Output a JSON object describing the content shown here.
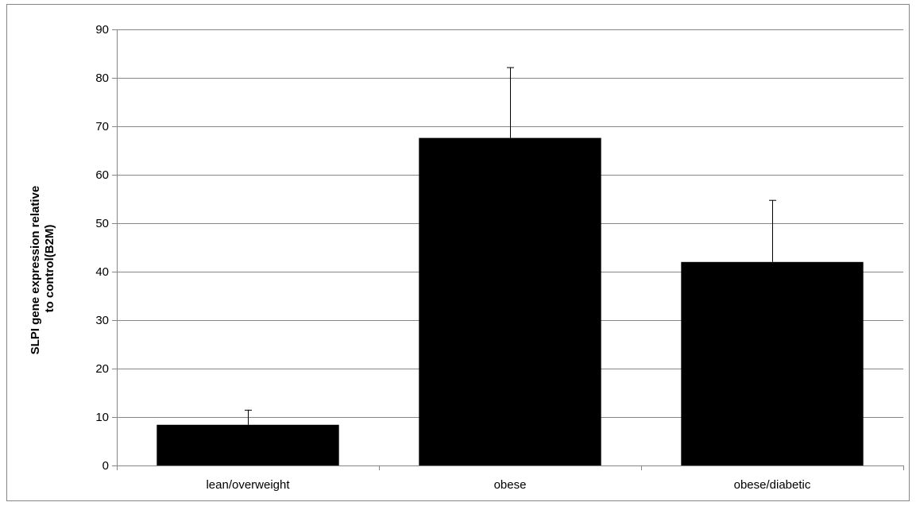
{
  "chart_data": {
    "type": "bar",
    "title": "",
    "xlabel": "",
    "ylabel_lines": [
      "SLPI gene expression relative",
      "to control(B2M)"
    ],
    "categories": [
      "lean/overweight",
      "obese",
      "obese/diabetic"
    ],
    "series": [
      {
        "values": [
          8.4,
          67.6,
          42.0
        ],
        "error_plus": [
          3.1,
          14.6,
          12.8
        ]
      }
    ],
    "ylim": [
      0,
      90
    ],
    "yticks": [
      0,
      10,
      20,
      30,
      40,
      50,
      60,
      70,
      80,
      90
    ],
    "grid": true,
    "legend": "none",
    "colors": {
      "bar": "#000000",
      "grid": "#868686",
      "axis": "#868686",
      "error_bar": "#000000"
    }
  }
}
